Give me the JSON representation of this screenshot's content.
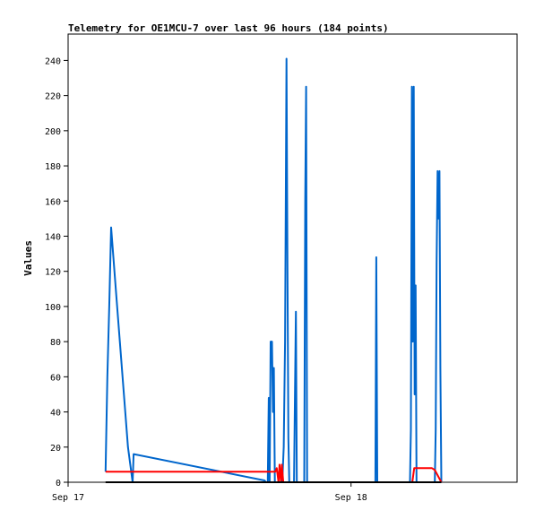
{
  "chart_data": {
    "type": "line",
    "title": "Telemetry for OE1MCU-7 over last 96 hours (184 points)",
    "xlabel": "",
    "ylabel": "Values",
    "xlim": [
      0,
      96
    ],
    "ylim": [
      0,
      255
    ],
    "x_ticks": [
      {
        "x": 0,
        "label": "Sep 17"
      },
      {
        "x": 60.5,
        "label": "Sep 18"
      }
    ],
    "y_ticks": [
      0,
      20,
      40,
      60,
      80,
      100,
      120,
      140,
      160,
      180,
      200,
      220,
      240
    ],
    "grid": false,
    "legend": "none",
    "x_unit": "hours since the Sep 17 tick",
    "series": [
      {
        "color": "#0066cc",
        "points": [
          [
            8.0,
            6
          ],
          [
            8.4,
            60
          ],
          [
            8.8,
            100
          ],
          [
            9.2,
            145
          ],
          [
            10.2,
            110
          ],
          [
            12.8,
            20
          ],
          [
            13.8,
            0
          ],
          [
            14.0,
            16
          ],
          [
            42.0,
            1
          ],
          [
            42.3,
            0
          ],
          [
            42.7,
            0
          ],
          [
            42.9,
            48
          ],
          [
            43.1,
            0
          ],
          [
            43.3,
            80
          ],
          [
            43.6,
            80
          ],
          [
            43.8,
            40
          ],
          [
            44.0,
            65
          ],
          [
            44.2,
            0
          ],
          [
            45.8,
            0
          ],
          [
            46.1,
            20
          ],
          [
            46.4,
            80
          ],
          [
            46.7,
            241
          ],
          [
            46.9,
            120
          ],
          [
            47.1,
            25
          ],
          [
            47.3,
            0
          ],
          [
            48.3,
            0
          ],
          [
            48.5,
            48
          ],
          [
            48.7,
            97
          ],
          [
            48.9,
            0
          ],
          [
            50.5,
            0
          ],
          [
            50.7,
            160
          ],
          [
            50.9,
            225
          ],
          [
            51.1,
            0
          ],
          [
            51.5,
            0
          ],
          [
            65.7,
            0
          ],
          [
            65.9,
            128
          ],
          [
            66.1,
            0
          ],
          [
            73.0,
            0
          ],
          [
            73.1,
            0
          ],
          [
            73.3,
            30
          ],
          [
            73.5,
            225
          ],
          [
            73.7,
            80
          ],
          [
            73.9,
            225
          ],
          [
            74.1,
            50
          ],
          [
            74.3,
            112
          ],
          [
            74.5,
            0
          ],
          [
            78.4,
            0
          ],
          [
            78.6,
            30
          ],
          [
            78.8,
            125
          ],
          [
            79.0,
            177
          ],
          [
            79.2,
            150
          ],
          [
            79.4,
            177
          ],
          [
            79.6,
            65
          ],
          [
            79.8,
            0
          ]
        ]
      },
      {
        "color": "#ff0000",
        "points": [
          [
            8.0,
            6
          ],
          [
            44.3,
            6
          ],
          [
            44.6,
            8
          ],
          [
            45.0,
            0
          ],
          [
            45.2,
            10
          ],
          [
            45.5,
            0
          ],
          [
            45.7,
            10
          ],
          [
            46.0,
            0
          ],
          [
            73.6,
            0
          ],
          [
            74.0,
            8
          ],
          [
            77.5,
            8
          ],
          [
            77.8,
            8
          ],
          [
            78.4,
            7
          ],
          [
            79.8,
            0
          ]
        ]
      },
      {
        "color": "#000000",
        "points": [
          [
            8.0,
            0
          ],
          [
            79.8,
            0
          ]
        ]
      }
    ]
  }
}
